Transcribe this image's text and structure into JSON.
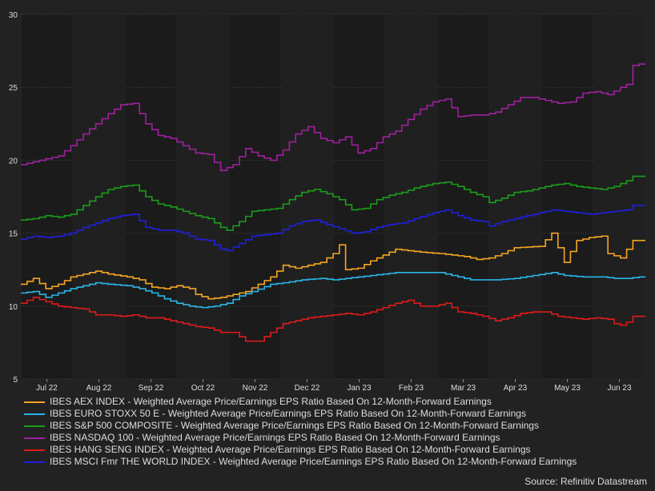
{
  "chart_data": {
    "type": "line",
    "x_tick_labels": [
      "Jul 22",
      "Aug 22",
      "Sep 22",
      "Oct 22",
      "Nov 22",
      "Dec 22",
      "Jan 23",
      "Feb 23",
      "Mar 23",
      "Apr 23",
      "May 23",
      "Jun 23"
    ],
    "y_ticks": [
      5,
      10,
      15,
      20,
      25,
      30
    ],
    "ylim": [
      5,
      30
    ],
    "x_count": 100,
    "grid": true,
    "series": [
      {
        "name": "IBES AEX INDEX - Weighted Average Price/Earnings EPS Ratio Based On 12-Month-Forward Earnings",
        "color": "#f5a623",
        "keypoints": [
          [
            0,
            11.5
          ],
          [
            2,
            11.9
          ],
          [
            4,
            11.2
          ],
          [
            6,
            11.5
          ],
          [
            8,
            12.0
          ],
          [
            10,
            12.2
          ],
          [
            12,
            12.4
          ],
          [
            14,
            12.2
          ],
          [
            17,
            12.0
          ],
          [
            19,
            11.8
          ],
          [
            21,
            11.3
          ],
          [
            23,
            11.2
          ],
          [
            25,
            11.4
          ],
          [
            27,
            11.2
          ],
          [
            28,
            10.8
          ],
          [
            30,
            10.5
          ],
          [
            32,
            10.6
          ],
          [
            34,
            10.8
          ],
          [
            36,
            11.0
          ],
          [
            38,
            11.5
          ],
          [
            40,
            12.0
          ],
          [
            42,
            12.8
          ],
          [
            44,
            12.6
          ],
          [
            46,
            12.8
          ],
          [
            48,
            13.0
          ],
          [
            50,
            13.6
          ],
          [
            51,
            14.2
          ],
          [
            52,
            12.5
          ],
          [
            54,
            12.6
          ],
          [
            56,
            13.1
          ],
          [
            58,
            13.5
          ],
          [
            60,
            13.9
          ],
          [
            62,
            13.8
          ],
          [
            64,
            13.7
          ],
          [
            67,
            13.6
          ],
          [
            69,
            13.5
          ],
          [
            71,
            13.4
          ],
          [
            73,
            13.2
          ],
          [
            75,
            13.3
          ],
          [
            77,
            13.6
          ],
          [
            79,
            14.0
          ],
          [
            83,
            14.1
          ],
          [
            85,
            15.0
          ],
          [
            86,
            14.0
          ],
          [
            87,
            13.0
          ],
          [
            89,
            14.5
          ],
          [
            91,
            14.7
          ],
          [
            93,
            14.8
          ],
          [
            94,
            13.6
          ],
          [
            96,
            13.3
          ],
          [
            98,
            14.5
          ],
          [
            99,
            14.5
          ]
        ]
      },
      {
        "name": "IBES EURO STOXX 50 E - Weighted Average Price/Earnings EPS Ratio Based On 12-Month-Forward Earnings",
        "color": "#29b6e8",
        "keypoints": [
          [
            0,
            10.9
          ],
          [
            2,
            11.0
          ],
          [
            4,
            10.6
          ],
          [
            6,
            10.9
          ],
          [
            8,
            11.2
          ],
          [
            10,
            11.4
          ],
          [
            12,
            11.6
          ],
          [
            14,
            11.5
          ],
          [
            17,
            11.4
          ],
          [
            19,
            11.2
          ],
          [
            21,
            10.9
          ],
          [
            23,
            10.5
          ],
          [
            25,
            10.2
          ],
          [
            27,
            10.0
          ],
          [
            29,
            9.9
          ],
          [
            31,
            10.0
          ],
          [
            33,
            10.2
          ],
          [
            35,
            10.7
          ],
          [
            37,
            11.0
          ],
          [
            40,
            11.5
          ],
          [
            42,
            11.6
          ],
          [
            45,
            11.8
          ],
          [
            48,
            11.9
          ],
          [
            50,
            11.8
          ],
          [
            52,
            11.9
          ],
          [
            56,
            12.1
          ],
          [
            58,
            12.2
          ],
          [
            60,
            12.3
          ],
          [
            64,
            12.3
          ],
          [
            67,
            12.3
          ],
          [
            70,
            12.0
          ],
          [
            72,
            11.8
          ],
          [
            76,
            11.8
          ],
          [
            79,
            11.9
          ],
          [
            82,
            12.1
          ],
          [
            85,
            12.3
          ],
          [
            87,
            12.1
          ],
          [
            90,
            12.0
          ],
          [
            93,
            12.0
          ],
          [
            95,
            11.9
          ],
          [
            97,
            11.9
          ],
          [
            99,
            12.0
          ]
        ]
      },
      {
        "name": "IBES S&P 500 COMPOSITE - Weighted Average Price/Earnings EPS Ratio Based On 12-Month-Forward Earnings",
        "color": "#1b9e1b",
        "keypoints": [
          [
            0,
            15.9
          ],
          [
            2,
            16.0
          ],
          [
            4,
            16.2
          ],
          [
            6,
            16.1
          ],
          [
            8,
            16.3
          ],
          [
            10,
            16.9
          ],
          [
            12,
            17.5
          ],
          [
            14,
            18.0
          ],
          [
            16,
            18.2
          ],
          [
            18,
            18.3
          ],
          [
            20,
            17.5
          ],
          [
            22,
            17.0
          ],
          [
            24,
            16.8
          ],
          [
            26,
            16.5
          ],
          [
            28,
            16.2
          ],
          [
            30,
            16.0
          ],
          [
            32,
            15.4
          ],
          [
            33,
            15.2
          ],
          [
            35,
            15.8
          ],
          [
            37,
            16.5
          ],
          [
            39,
            16.6
          ],
          [
            41,
            16.7
          ],
          [
            43,
            17.3
          ],
          [
            45,
            17.8
          ],
          [
            47,
            18.0
          ],
          [
            49,
            17.7
          ],
          [
            51,
            17.3
          ],
          [
            53,
            16.6
          ],
          [
            55,
            16.7
          ],
          [
            57,
            17.3
          ],
          [
            59,
            17.6
          ],
          [
            61,
            17.8
          ],
          [
            63,
            18.1
          ],
          [
            66,
            18.4
          ],
          [
            68,
            18.5
          ],
          [
            70,
            18.2
          ],
          [
            72,
            17.8
          ],
          [
            74,
            17.5
          ],
          [
            75,
            17.1
          ],
          [
            77,
            17.4
          ],
          [
            79,
            17.8
          ],
          [
            81,
            17.9
          ],
          [
            83,
            18.1
          ],
          [
            85,
            18.3
          ],
          [
            87,
            18.4
          ],
          [
            89,
            18.2
          ],
          [
            91,
            18.1
          ],
          [
            93,
            18.0
          ],
          [
            95,
            18.2
          ],
          [
            97,
            18.6
          ],
          [
            98,
            18.9
          ],
          [
            99,
            18.9
          ]
        ]
      },
      {
        "name": "IBES NASDAQ 100 - Weighted Average Price/Earnings EPS Ratio Based On 12-Month-Forward Earnings",
        "color": "#a020a0",
        "keypoints": [
          [
            0,
            19.7
          ],
          [
            2,
            19.9
          ],
          [
            4,
            20.1
          ],
          [
            6,
            20.3
          ],
          [
            8,
            21.0
          ],
          [
            10,
            21.8
          ],
          [
            12,
            22.5
          ],
          [
            14,
            23.2
          ],
          [
            16,
            23.8
          ],
          [
            18,
            23.9
          ],
          [
            20,
            22.5
          ],
          [
            22,
            21.7
          ],
          [
            24,
            21.5
          ],
          [
            26,
            21.0
          ],
          [
            28,
            20.5
          ],
          [
            30,
            20.4
          ],
          [
            32,
            19.3
          ],
          [
            34,
            19.7
          ],
          [
            36,
            20.8
          ],
          [
            38,
            20.3
          ],
          [
            40,
            20.0
          ],
          [
            42,
            20.7
          ],
          [
            44,
            21.8
          ],
          [
            46,
            22.3
          ],
          [
            48,
            21.5
          ],
          [
            50,
            21.2
          ],
          [
            52,
            21.6
          ],
          [
            54,
            20.5
          ],
          [
            56,
            20.8
          ],
          [
            58,
            21.6
          ],
          [
            60,
            22.0
          ],
          [
            62,
            22.8
          ],
          [
            64,
            23.5
          ],
          [
            66,
            24.0
          ],
          [
            68,
            24.2
          ],
          [
            70,
            23.0
          ],
          [
            72,
            23.1
          ],
          [
            74,
            23.1
          ],
          [
            76,
            23.3
          ],
          [
            78,
            23.8
          ],
          [
            80,
            24.3
          ],
          [
            82,
            24.3
          ],
          [
            84,
            24.1
          ],
          [
            86,
            23.9
          ],
          [
            88,
            24.0
          ],
          [
            90,
            24.6
          ],
          [
            92,
            24.7
          ],
          [
            94,
            24.5
          ],
          [
            96,
            25.0
          ],
          [
            97,
            25.2
          ],
          [
            98,
            26.5
          ],
          [
            99,
            26.6
          ]
        ]
      },
      {
        "name": "IBES HANG SENG INDEX - Weighted Average Price/Earnings EPS Ratio Based On 12-Month-Forward Earnings",
        "color": "#e01b1b",
        "keypoints": [
          [
            0,
            10.2
          ],
          [
            2,
            10.6
          ],
          [
            4,
            10.3
          ],
          [
            6,
            10.0
          ],
          [
            8,
            9.9
          ],
          [
            10,
            9.8
          ],
          [
            12,
            9.4
          ],
          [
            14,
            9.4
          ],
          [
            16,
            9.3
          ],
          [
            18,
            9.4
          ],
          [
            20,
            9.2
          ],
          [
            22,
            9.2
          ],
          [
            24,
            9.0
          ],
          [
            26,
            8.8
          ],
          [
            28,
            8.6
          ],
          [
            30,
            8.5
          ],
          [
            32,
            8.2
          ],
          [
            34,
            8.2
          ],
          [
            36,
            7.6
          ],
          [
            38,
            7.6
          ],
          [
            40,
            8.2
          ],
          [
            42,
            8.8
          ],
          [
            44,
            9.0
          ],
          [
            46,
            9.2
          ],
          [
            48,
            9.3
          ],
          [
            50,
            9.4
          ],
          [
            52,
            9.5
          ],
          [
            54,
            9.4
          ],
          [
            56,
            9.6
          ],
          [
            58,
            9.9
          ],
          [
            60,
            10.2
          ],
          [
            62,
            10.4
          ],
          [
            64,
            10.0
          ],
          [
            66,
            10.0
          ],
          [
            68,
            10.2
          ],
          [
            70,
            9.6
          ],
          [
            72,
            9.5
          ],
          [
            74,
            9.3
          ],
          [
            76,
            9.0
          ],
          [
            78,
            9.2
          ],
          [
            80,
            9.5
          ],
          [
            82,
            9.6
          ],
          [
            84,
            9.6
          ],
          [
            86,
            9.3
          ],
          [
            88,
            9.2
          ],
          [
            90,
            9.1
          ],
          [
            92,
            9.2
          ],
          [
            94,
            9.1
          ],
          [
            95,
            8.8
          ],
          [
            96,
            8.7
          ],
          [
            97,
            8.9
          ],
          [
            98,
            9.3
          ],
          [
            99,
            9.3
          ]
        ]
      },
      {
        "name": "IBES MSCI Fmr THE WORLD INDEX - Weighted Average Price/Earnings EPS Ratio Based On 12-Month-Forward Earnings",
        "color": "#1f1fe0",
        "keypoints": [
          [
            0,
            14.6
          ],
          [
            2,
            14.8
          ],
          [
            4,
            14.7
          ],
          [
            6,
            14.8
          ],
          [
            8,
            15.0
          ],
          [
            10,
            15.4
          ],
          [
            12,
            15.7
          ],
          [
            14,
            16.0
          ],
          [
            16,
            16.2
          ],
          [
            18,
            16.3
          ],
          [
            20,
            15.4
          ],
          [
            22,
            15.2
          ],
          [
            24,
            15.2
          ],
          [
            26,
            15.0
          ],
          [
            28,
            14.6
          ],
          [
            30,
            14.5
          ],
          [
            32,
            13.9
          ],
          [
            33,
            13.8
          ],
          [
            35,
            14.3
          ],
          [
            37,
            14.8
          ],
          [
            39,
            14.9
          ],
          [
            41,
            15.0
          ],
          [
            43,
            15.5
          ],
          [
            45,
            15.8
          ],
          [
            47,
            15.9
          ],
          [
            49,
            15.6
          ],
          [
            51,
            15.3
          ],
          [
            53,
            15.0
          ],
          [
            55,
            15.1
          ],
          [
            57,
            15.4
          ],
          [
            59,
            15.6
          ],
          [
            61,
            15.7
          ],
          [
            63,
            16.0
          ],
          [
            66,
            16.4
          ],
          [
            68,
            16.6
          ],
          [
            70,
            16.2
          ],
          [
            72,
            15.9
          ],
          [
            74,
            15.8
          ],
          [
            75,
            15.5
          ],
          [
            77,
            15.8
          ],
          [
            79,
            16.0
          ],
          [
            81,
            16.2
          ],
          [
            83,
            16.4
          ],
          [
            85,
            16.6
          ],
          [
            87,
            16.5
          ],
          [
            89,
            16.4
          ],
          [
            91,
            16.3
          ],
          [
            93,
            16.4
          ],
          [
            95,
            16.5
          ],
          [
            97,
            16.6
          ],
          [
            98,
            16.9
          ],
          [
            99,
            16.9
          ]
        ]
      }
    ]
  },
  "source": "Source: Refinitiv Datastream"
}
